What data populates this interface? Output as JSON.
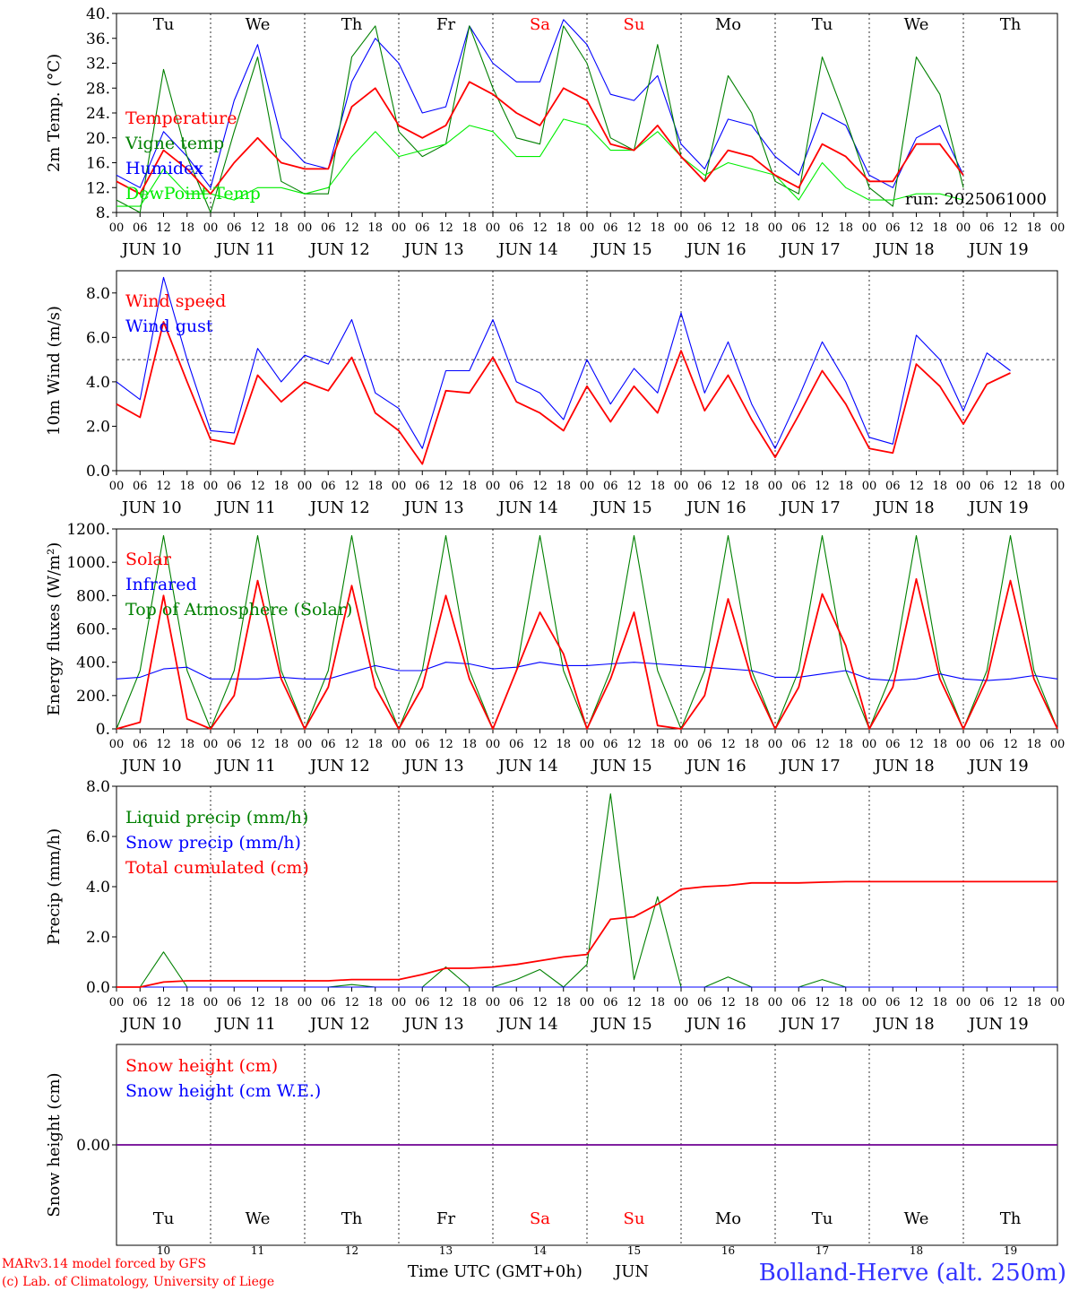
{
  "colors": {
    "red": "#ff0000",
    "green": "#008000",
    "blue": "#0000ff",
    "lightgreen": "#00ee00",
    "axis": "#000000"
  },
  "days": {
    "names": [
      "Tu",
      "We",
      "Th",
      "Fr",
      "Sa",
      "Su",
      "Mo",
      "Tu",
      "We",
      "Th"
    ],
    "weekend_flags": [
      false,
      false,
      false,
      false,
      true,
      true,
      false,
      false,
      false,
      false
    ],
    "dates": [
      "JUN 10",
      "JUN 11",
      "JUN 12",
      "JUN 13",
      "JUN 14",
      "JUN 15",
      "JUN 16",
      "JUN 17",
      "JUN 18",
      "JUN 19"
    ],
    "day_numbers": [
      "10",
      "11",
      "12",
      "13",
      "14",
      "15",
      "16",
      "17",
      "18",
      "19"
    ],
    "hour_ticks": [
      "00",
      "06",
      "12",
      "18"
    ],
    "final_hour_tick": "00"
  },
  "footer": {
    "model_line": "MARv3.14 model forced by GFS",
    "credit_line": "(c) Lab. of Climatology, University of Liege",
    "xlabel": "Time UTC (GMT+0h)",
    "month": "JUN",
    "station": "Bolland-Herve (alt. 250m)"
  },
  "chart_data": [
    {
      "type": "line",
      "ylabel": "2m Temp. (°C)",
      "ylim": [
        8,
        40
      ],
      "yticks": [
        "8.",
        "12.",
        "16.",
        "20.",
        "24.",
        "28.",
        "32.",
        "36.",
        "40."
      ],
      "ytick_values": [
        8,
        12,
        16,
        20,
        24,
        28,
        32,
        36,
        40
      ],
      "annotation": "run: 2025061000",
      "x_step_hours": 6,
      "series": [
        {
          "name": "Humidex",
          "color": "#0000ff",
          "values": [
            14,
            12,
            21,
            17,
            12,
            26,
            35,
            20,
            16,
            15,
            29,
            36,
            32,
            24,
            25,
            38,
            32,
            29,
            29,
            39,
            35,
            27,
            26,
            30,
            19,
            15,
            23,
            22,
            17,
            14,
            24,
            22,
            14,
            12,
            20,
            22,
            14
          ]
        },
        {
          "name": "Vigne temp",
          "color": "#008000",
          "values": [
            10,
            8,
            31,
            17,
            8,
            21,
            33,
            13,
            11,
            11,
            33,
            38,
            21,
            17,
            19,
            38,
            28,
            20,
            19,
            38,
            32,
            20,
            18,
            35,
            17,
            13,
            30,
            24,
            13,
            11,
            33,
            23,
            12,
            9,
            33,
            27,
            12
          ]
        },
        {
          "name": "DewPoint Temp",
          "color": "#00ee00",
          "values": [
            9,
            9,
            15,
            11,
            11,
            10,
            12,
            12,
            11,
            12,
            17,
            21,
            17,
            18,
            19,
            22,
            21,
            17,
            17,
            23,
            22,
            18,
            18,
            21,
            17,
            14,
            16,
            15,
            14,
            10,
            16,
            12,
            10,
            10,
            11,
            11,
            10
          ]
        },
        {
          "name": "Temperature",
          "color": "#ff0000",
          "values": [
            13,
            11,
            18,
            15,
            11,
            16,
            20,
            16,
            15,
            15,
            25,
            28,
            22,
            20,
            22,
            29,
            27,
            24,
            22,
            28,
            26,
            19,
            18,
            22,
            17,
            13,
            18,
            17,
            14,
            12,
            19,
            17,
            13,
            13,
            19,
            19,
            14
          ]
        }
      ]
    },
    {
      "type": "line",
      "ylabel": "10m Wind (m/s)",
      "ylim": [
        0,
        9
      ],
      "yticks": [
        "0.0",
        "2.0",
        "4.0",
        "6.0",
        "8.0"
      ],
      "ytick_values": [
        0,
        2,
        4,
        6,
        8
      ],
      "reference_line": 5,
      "x_step_hours": 6,
      "series": [
        {
          "name": "Wind gust",
          "color": "#0000ff",
          "values": [
            4.0,
            3.2,
            8.7,
            5.0,
            1.8,
            1.7,
            5.5,
            4.0,
            5.2,
            4.8,
            6.8,
            3.5,
            2.8,
            1.0,
            4.5,
            4.5,
            6.8,
            4.0,
            3.5,
            2.3,
            5.0,
            3.0,
            4.6,
            3.5,
            7.1,
            3.5,
            5.8,
            3.0,
            1.0,
            3.3,
            5.8,
            4.0,
            1.5,
            1.2,
            6.1,
            5.0,
            2.7,
            5.3,
            4.5
          ]
        },
        {
          "name": "Wind speed",
          "color": "#ff0000",
          "values": [
            3.0,
            2.4,
            6.7,
            4.0,
            1.4,
            1.2,
            4.3,
            3.1,
            4.0,
            3.6,
            5.1,
            2.6,
            1.8,
            0.3,
            3.6,
            3.5,
            5.1,
            3.1,
            2.6,
            1.8,
            3.8,
            2.2,
            3.8,
            2.6,
            5.4,
            2.7,
            4.3,
            2.3,
            0.6,
            2.5,
            4.5,
            3.0,
            1.0,
            0.8,
            4.8,
            3.8,
            2.1,
            3.9,
            4.4
          ]
        }
      ]
    },
    {
      "type": "line",
      "ylabel": "Energy fluxes (W/m²)",
      "ylim": [
        0,
        1200
      ],
      "yticks": [
        "0.",
        "200.",
        "400.",
        "600.",
        "800.",
        "1000.",
        "1200."
      ],
      "ytick_values": [
        0,
        200,
        400,
        600,
        800,
        1000,
        1200
      ],
      "x_step_hours": 6,
      "series": [
        {
          "name": "Top of Atmosphere (Solar)",
          "color": "#008000",
          "values": [
            0,
            350,
            1160,
            350,
            0,
            350,
            1160,
            350,
            0,
            350,
            1160,
            350,
            0,
            350,
            1160,
            350,
            0,
            350,
            1160,
            350,
            0,
            350,
            1160,
            350,
            0,
            350,
            1160,
            350,
            0,
            350,
            1160,
            350,
            0,
            350,
            1160,
            350,
            0,
            350,
            1160,
            350,
            0
          ]
        },
        {
          "name": "Infrared",
          "color": "#0000ff",
          "values": [
            300,
            310,
            360,
            370,
            300,
            300,
            300,
            310,
            300,
            300,
            340,
            380,
            350,
            350,
            400,
            390,
            360,
            370,
            400,
            380,
            380,
            390,
            400,
            390,
            380,
            370,
            360,
            350,
            310,
            310,
            330,
            350,
            300,
            290,
            300,
            330,
            300,
            290,
            300,
            320,
            300
          ]
        },
        {
          "name": "Solar",
          "color": "#ff0000",
          "values": [
            0,
            40,
            800,
            60,
            0,
            200,
            890,
            300,
            0,
            250,
            860,
            250,
            0,
            250,
            800,
            300,
            0,
            350,
            700,
            450,
            0,
            300,
            700,
            20,
            0,
            200,
            780,
            300,
            0,
            250,
            810,
            500,
            0,
            250,
            900,
            300,
            0,
            300,
            890,
            300,
            0
          ]
        }
      ]
    },
    {
      "type": "line",
      "ylabel": "Precip (mm/h)",
      "ylim": [
        0,
        8
      ],
      "yticks": [
        "0.0",
        "2.0",
        "4.0",
        "6.0",
        "8.0"
      ],
      "ytick_values": [
        0,
        2,
        4,
        6,
        8
      ],
      "x_step_hours": 6,
      "series": [
        {
          "name": "Liquid precip (mm/h)",
          "color": "#008000",
          "values": [
            0,
            0,
            1.4,
            0,
            0,
            0,
            0,
            0,
            0,
            0,
            0.1,
            0,
            0,
            0,
            0.8,
            0,
            0,
            0.3,
            0.7,
            0,
            0.9,
            7.7,
            0.3,
            3.6,
            0,
            0,
            0.4,
            0,
            0,
            0,
            0.3,
            0,
            0,
            0,
            0,
            0,
            0,
            0,
            0,
            0,
            0
          ]
        },
        {
          "name": "Snow precip (mm/h)",
          "color": "#0000ff",
          "values": [
            0,
            0,
            0,
            0,
            0,
            0,
            0,
            0,
            0,
            0,
            0,
            0,
            0,
            0,
            0,
            0,
            0,
            0,
            0,
            0,
            0,
            0,
            0,
            0,
            0,
            0,
            0,
            0,
            0,
            0,
            0,
            0,
            0,
            0,
            0,
            0,
            0,
            0,
            0,
            0,
            0
          ]
        },
        {
          "name": "Total cumulated (cm)",
          "color": "#ff0000",
          "values": [
            0,
            0,
            0.2,
            0.25,
            0.25,
            0.25,
            0.25,
            0.25,
            0.25,
            0.25,
            0.3,
            0.3,
            0.3,
            0.5,
            0.75,
            0.75,
            0.8,
            0.9,
            1.05,
            1.2,
            1.3,
            2.7,
            2.8,
            3.3,
            3.9,
            4.0,
            4.05,
            4.15,
            4.15,
            4.15,
            4.18,
            4.2,
            4.2,
            4.2,
            4.2,
            4.2,
            4.2,
            4.2,
            4.2,
            4.2,
            4.2
          ]
        }
      ]
    },
    {
      "type": "line",
      "ylabel": "Snow height (cm)",
      "ylim": [
        -1,
        1
      ],
      "yticks": [
        "0.00"
      ],
      "ytick_values": [
        0
      ],
      "x_step_hours": 6,
      "series": [
        {
          "name": "Snow height (cm)",
          "color": "#ff0000",
          "values": [
            0,
            0
          ]
        },
        {
          "name": "Snow height (cm W.E.)",
          "color": "#0000ff",
          "values": [
            0,
            0
          ]
        }
      ]
    }
  ]
}
